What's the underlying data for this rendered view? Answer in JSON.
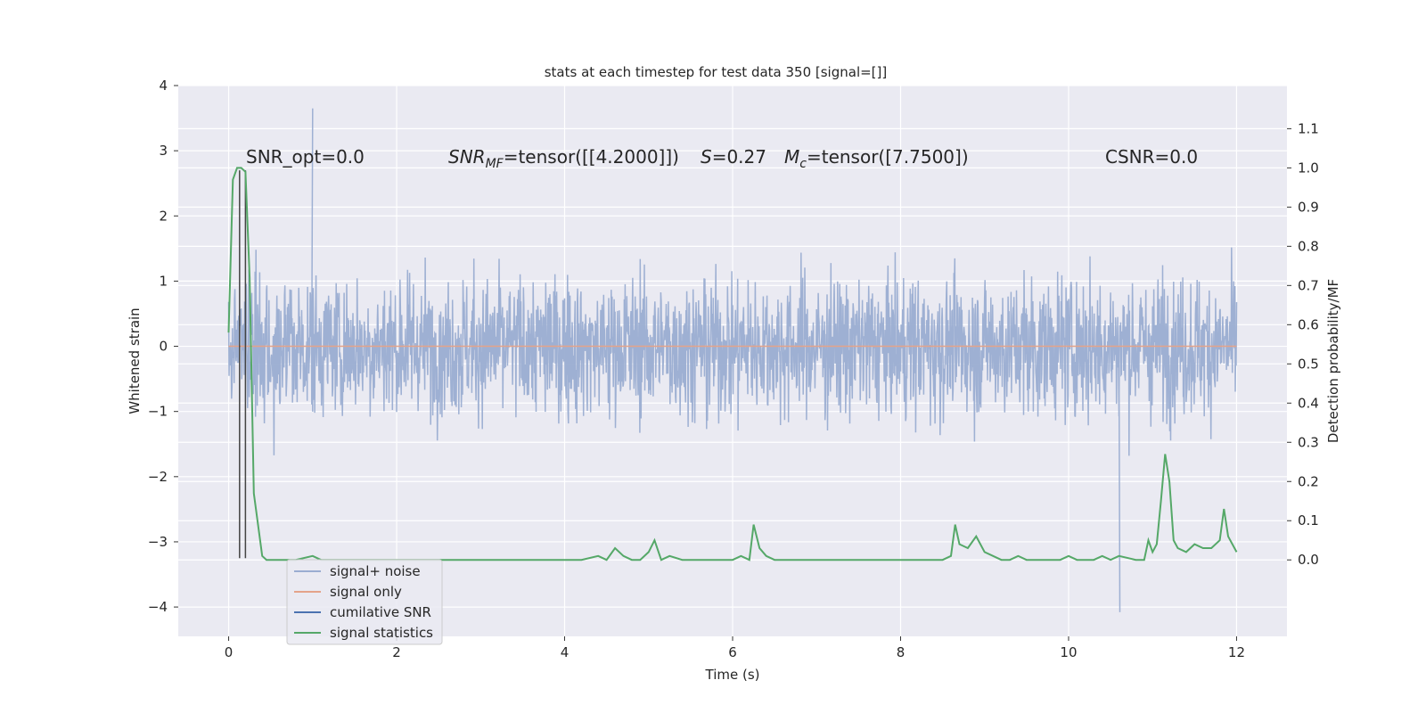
{
  "chart_data": {
    "type": "line",
    "title": "stats at each timestep for test data 350 [signal=[]]",
    "xlabel": "Time (s)",
    "ylabel": "Whitened strain",
    "ylabel_right": "Detection probability/MF",
    "xlim": [
      -0.6,
      12.6
    ],
    "ylim": [
      -4.45,
      4.0
    ],
    "ylim_right": [
      -0.195,
      1.21
    ],
    "x_ticks": [
      0,
      2,
      4,
      6,
      8,
      10,
      12
    ],
    "y_ticks": [
      -4,
      -3,
      -2,
      -1,
      0,
      1,
      2,
      3,
      4
    ],
    "y_right_ticks": [
      0.0,
      0.1,
      0.2,
      0.3,
      0.4,
      0.5,
      0.6,
      0.7,
      0.8,
      0.9,
      1.0,
      1.1
    ],
    "grid": true,
    "legend_position": "lower-left",
    "annotations": {
      "snr_opt": "SNR_opt=0.0",
      "snr_mf_sym": "SNR",
      "snr_mf_sub": "MF",
      "snr_mf_val": "=tensor([[4.2000]])",
      "s_sym": "S",
      "s_val": "=0.27",
      "mc_sym": "M",
      "mc_sub": "c",
      "mc_val": "=tensor([7.7500])",
      "csnr": "CSNR=0.0"
    },
    "series": [
      {
        "name": "signal+ noise",
        "color": "#9aadd1",
        "kind": "noise",
        "x_range": [
          0,
          12
        ],
        "typical_range": [
          -1.5,
          2.2
        ],
        "extremes": {
          "max": 3.65,
          "min": -4.08
        }
      },
      {
        "name": "signal only",
        "color": "#e4a38a",
        "kind": "constant",
        "x": [
          0,
          12
        ],
        "y": [
          0,
          0
        ]
      },
      {
        "name": "cumilative SNR",
        "color": "#4c72b0",
        "kind": "none",
        "x": [],
        "y": []
      },
      {
        "name": "signal statistics",
        "color": "#55a868",
        "kind": "line",
        "axis": "right",
        "x": [
          0.0,
          0.05,
          0.1,
          0.15,
          0.2,
          0.25,
          0.3,
          0.35,
          0.4,
          0.45,
          0.5,
          0.6,
          0.8,
          1.0,
          1.1,
          1.2,
          1.3,
          1.5,
          1.7,
          1.9,
          2.1,
          2.4,
          2.7,
          3.0,
          3.3,
          3.6,
          3.9,
          4.2,
          4.4,
          4.5,
          4.6,
          4.7,
          4.8,
          4.9,
          5.0,
          5.07,
          5.15,
          5.25,
          5.4,
          5.6,
          5.8,
          6.0,
          6.1,
          6.2,
          6.25,
          6.32,
          6.4,
          6.5,
          6.7,
          7.0,
          7.5,
          8.0,
          8.5,
          8.6,
          8.65,
          8.7,
          8.8,
          8.9,
          9.0,
          9.1,
          9.2,
          9.3,
          9.4,
          9.5,
          9.7,
          9.9,
          10.0,
          10.1,
          10.2,
          10.3,
          10.4,
          10.5,
          10.6,
          10.8,
          10.9,
          10.95,
          11.0,
          11.05,
          11.1,
          11.15,
          11.2,
          11.25,
          11.3,
          11.4,
          11.5,
          11.6,
          11.7,
          11.8,
          11.85,
          11.9,
          12.0
        ],
        "y": [
          0.58,
          0.97,
          1.0,
          1.0,
          0.99,
          0.72,
          0.17,
          0.09,
          0.01,
          0.0,
          0.0,
          0.0,
          0.0,
          0.01,
          0.0,
          0.0,
          0.0,
          0.0,
          0.0,
          0.0,
          0.0,
          0.0,
          0.0,
          0.0,
          0.0,
          0.0,
          0.0,
          0.0,
          0.01,
          0.0,
          0.03,
          0.01,
          0.0,
          0.0,
          0.02,
          0.05,
          0.0,
          0.01,
          0.0,
          0.0,
          0.0,
          0.0,
          0.01,
          0.0,
          0.09,
          0.03,
          0.01,
          0.0,
          0.0,
          0.0,
          0.0,
          0.0,
          0.0,
          0.01,
          0.09,
          0.04,
          0.03,
          0.06,
          0.02,
          0.01,
          0.0,
          0.0,
          0.01,
          0.0,
          0.0,
          0.0,
          0.01,
          0.0,
          0.0,
          0.0,
          0.01,
          0.0,
          0.01,
          0.0,
          0.0,
          0.05,
          0.02,
          0.04,
          0.15,
          0.27,
          0.2,
          0.05,
          0.03,
          0.02,
          0.04,
          0.03,
          0.03,
          0.05,
          0.13,
          0.06,
          0.02
        ]
      }
    ],
    "markers": {
      "color": "#444444",
      "kind": "vline",
      "x": [
        0.13,
        0.2
      ],
      "y_bottom": -3.25,
      "y_top": 2.7
    }
  }
}
